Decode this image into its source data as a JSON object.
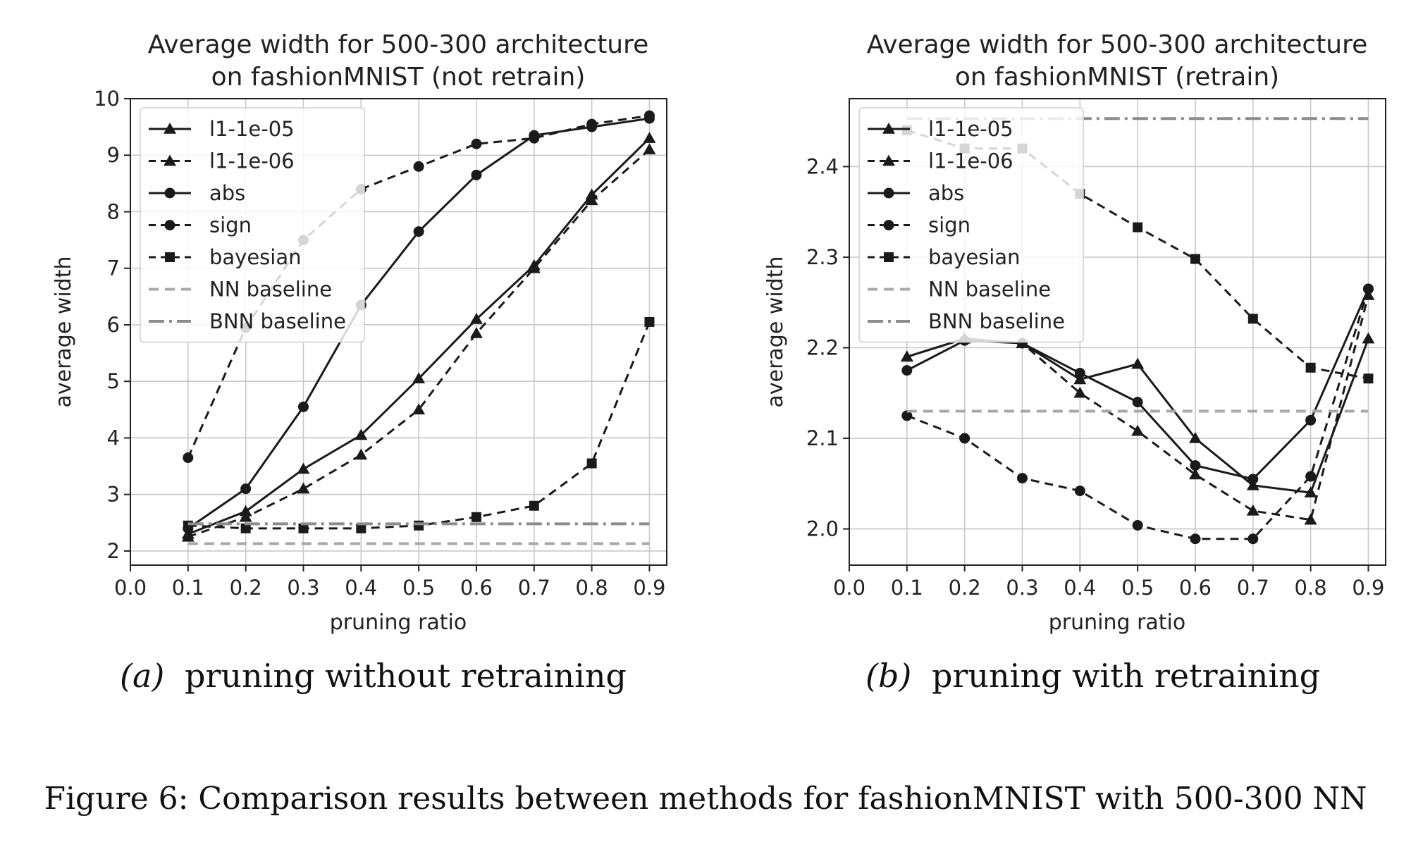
{
  "figure_caption": "Figure 6: Comparison results between methods for fashionMNIST with 500-300 NN",
  "styles": {
    "l1-1e-05": {
      "color": "#1a1a1a",
      "dash": "",
      "marker": "triangle"
    },
    "l1-1e-06": {
      "color": "#1a1a1a",
      "dash": "12,8",
      "marker": "triangle"
    },
    "abs": {
      "color": "#1a1a1a",
      "dash": "",
      "marker": "circle"
    },
    "sign": {
      "color": "#1a1a1a",
      "dash": "12,8",
      "marker": "circle"
    },
    "bayesian": {
      "color": "#1a1a1a",
      "dash": "12,8",
      "marker": "square"
    },
    "nn-baseline": {
      "color": "#a8a8a8",
      "dash": "14,9",
      "marker": "none"
    },
    "bnn-baseline": {
      "color": "#8c8c8c",
      "dash": "22,7,4,7",
      "marker": "none"
    }
  },
  "chart_data": [
    {
      "type": "line",
      "title": [
        "Average width for 500-300 architecture",
        "on fashionMNIST (not retrain)"
      ],
      "subcaption_label": "(a)",
      "subcaption_text": "pruning without retraining",
      "xlabel": "pruning ratio",
      "ylabel": "average width",
      "xlim": [
        0.0,
        0.93
      ],
      "ylim": [
        1.75,
        10.0
      ],
      "xticks": [
        "0.0",
        "0.1",
        "0.2",
        "0.3",
        "0.4",
        "0.5",
        "0.6",
        "0.7",
        "0.8",
        "0.9"
      ],
      "yticks": [
        "2",
        "3",
        "4",
        "5",
        "6",
        "7",
        "8",
        "9",
        "10"
      ],
      "grid": true,
      "legend_position": "upper-left",
      "x": [
        0.1,
        0.2,
        0.3,
        0.4,
        0.5,
        0.6,
        0.7,
        0.8,
        0.9
      ],
      "series": [
        {
          "name": "l1-1e-05",
          "style": "l1-1e-05",
          "values": [
            2.3,
            2.7,
            3.45,
            4.05,
            5.05,
            6.1,
            7.05,
            8.3,
            9.3
          ]
        },
        {
          "name": "l1-1e-06",
          "style": "l1-1e-06",
          "values": [
            2.25,
            2.6,
            3.1,
            3.7,
            4.5,
            5.85,
            7.0,
            8.2,
            9.1
          ]
        },
        {
          "name": "abs",
          "style": "abs",
          "values": [
            2.4,
            3.1,
            4.55,
            6.35,
            7.65,
            8.65,
            9.35,
            9.5,
            9.65
          ]
        },
        {
          "name": "sign",
          "style": "sign",
          "values": [
            3.65,
            5.95,
            7.5,
            8.4,
            8.8,
            9.2,
            9.3,
            9.55,
            9.7
          ]
        },
        {
          "name": "bayesian",
          "style": "bayesian",
          "values": [
            2.45,
            2.4,
            2.4,
            2.4,
            2.45,
            2.6,
            2.8,
            3.55,
            6.05
          ]
        },
        {
          "name": "NN baseline",
          "style": "nn-baseline",
          "values": [
            2.13,
            2.13,
            2.13,
            2.13,
            2.13,
            2.13,
            2.13,
            2.13,
            2.13
          ]
        },
        {
          "name": "BNN baseline",
          "style": "bnn-baseline",
          "values": [
            2.48,
            2.48,
            2.48,
            2.48,
            2.48,
            2.48,
            2.48,
            2.48,
            2.48
          ]
        }
      ]
    },
    {
      "type": "line",
      "title": [
        "Average width for 500-300 architecture",
        "on fashionMNIST (retrain)"
      ],
      "subcaption_label": "(b)",
      "subcaption_text": "pruning with retraining",
      "xlabel": "pruning ratio",
      "ylabel": "average width",
      "xlim": [
        0.0,
        0.93
      ],
      "ylim": [
        1.96,
        2.475
      ],
      "xticks": [
        "0.0",
        "0.1",
        "0.2",
        "0.3",
        "0.4",
        "0.5",
        "0.6",
        "0.7",
        "0.8",
        "0.9"
      ],
      "yticks": [
        "2.0",
        "2.1",
        "2.2",
        "2.3",
        "2.4"
      ],
      "grid": true,
      "legend_position": "upper-left",
      "x": [
        0.1,
        0.2,
        0.3,
        0.4,
        0.5,
        0.6,
        0.7,
        0.8,
        0.9
      ],
      "series": [
        {
          "name": "l1-1e-05",
          "style": "l1-1e-05",
          "values": [
            2.19,
            2.21,
            2.205,
            2.165,
            2.182,
            2.1,
            2.048,
            2.04,
            2.21
          ]
        },
        {
          "name": "l1-1e-06",
          "style": "l1-1e-06",
          "values": [
            2.19,
            2.21,
            2.205,
            2.15,
            2.108,
            2.06,
            2.02,
            2.01,
            2.258
          ]
        },
        {
          "name": "abs",
          "style": "abs",
          "values": [
            2.175,
            2.208,
            2.205,
            2.172,
            2.14,
            2.07,
            2.055,
            2.12,
            2.265
          ]
        },
        {
          "name": "sign",
          "style": "sign",
          "values": [
            2.125,
            2.1,
            2.056,
            2.042,
            2.004,
            1.989,
            1.989,
            2.058,
            2.265
          ]
        },
        {
          "name": "bayesian",
          "style": "bayesian",
          "values": [
            2.44,
            2.42,
            2.42,
            2.37,
            2.333,
            2.298,
            2.232,
            2.178,
            2.166
          ]
        },
        {
          "name": "NN baseline",
          "style": "nn-baseline",
          "values": [
            2.13,
            2.13,
            2.13,
            2.13,
            2.13,
            2.13,
            2.13,
            2.13,
            2.13
          ]
        },
        {
          "name": "BNN baseline",
          "style": "bnn-baseline",
          "values": [
            2.453,
            2.453,
            2.453,
            2.453,
            2.453,
            2.453,
            2.453,
            2.453,
            2.453
          ]
        }
      ]
    }
  ]
}
